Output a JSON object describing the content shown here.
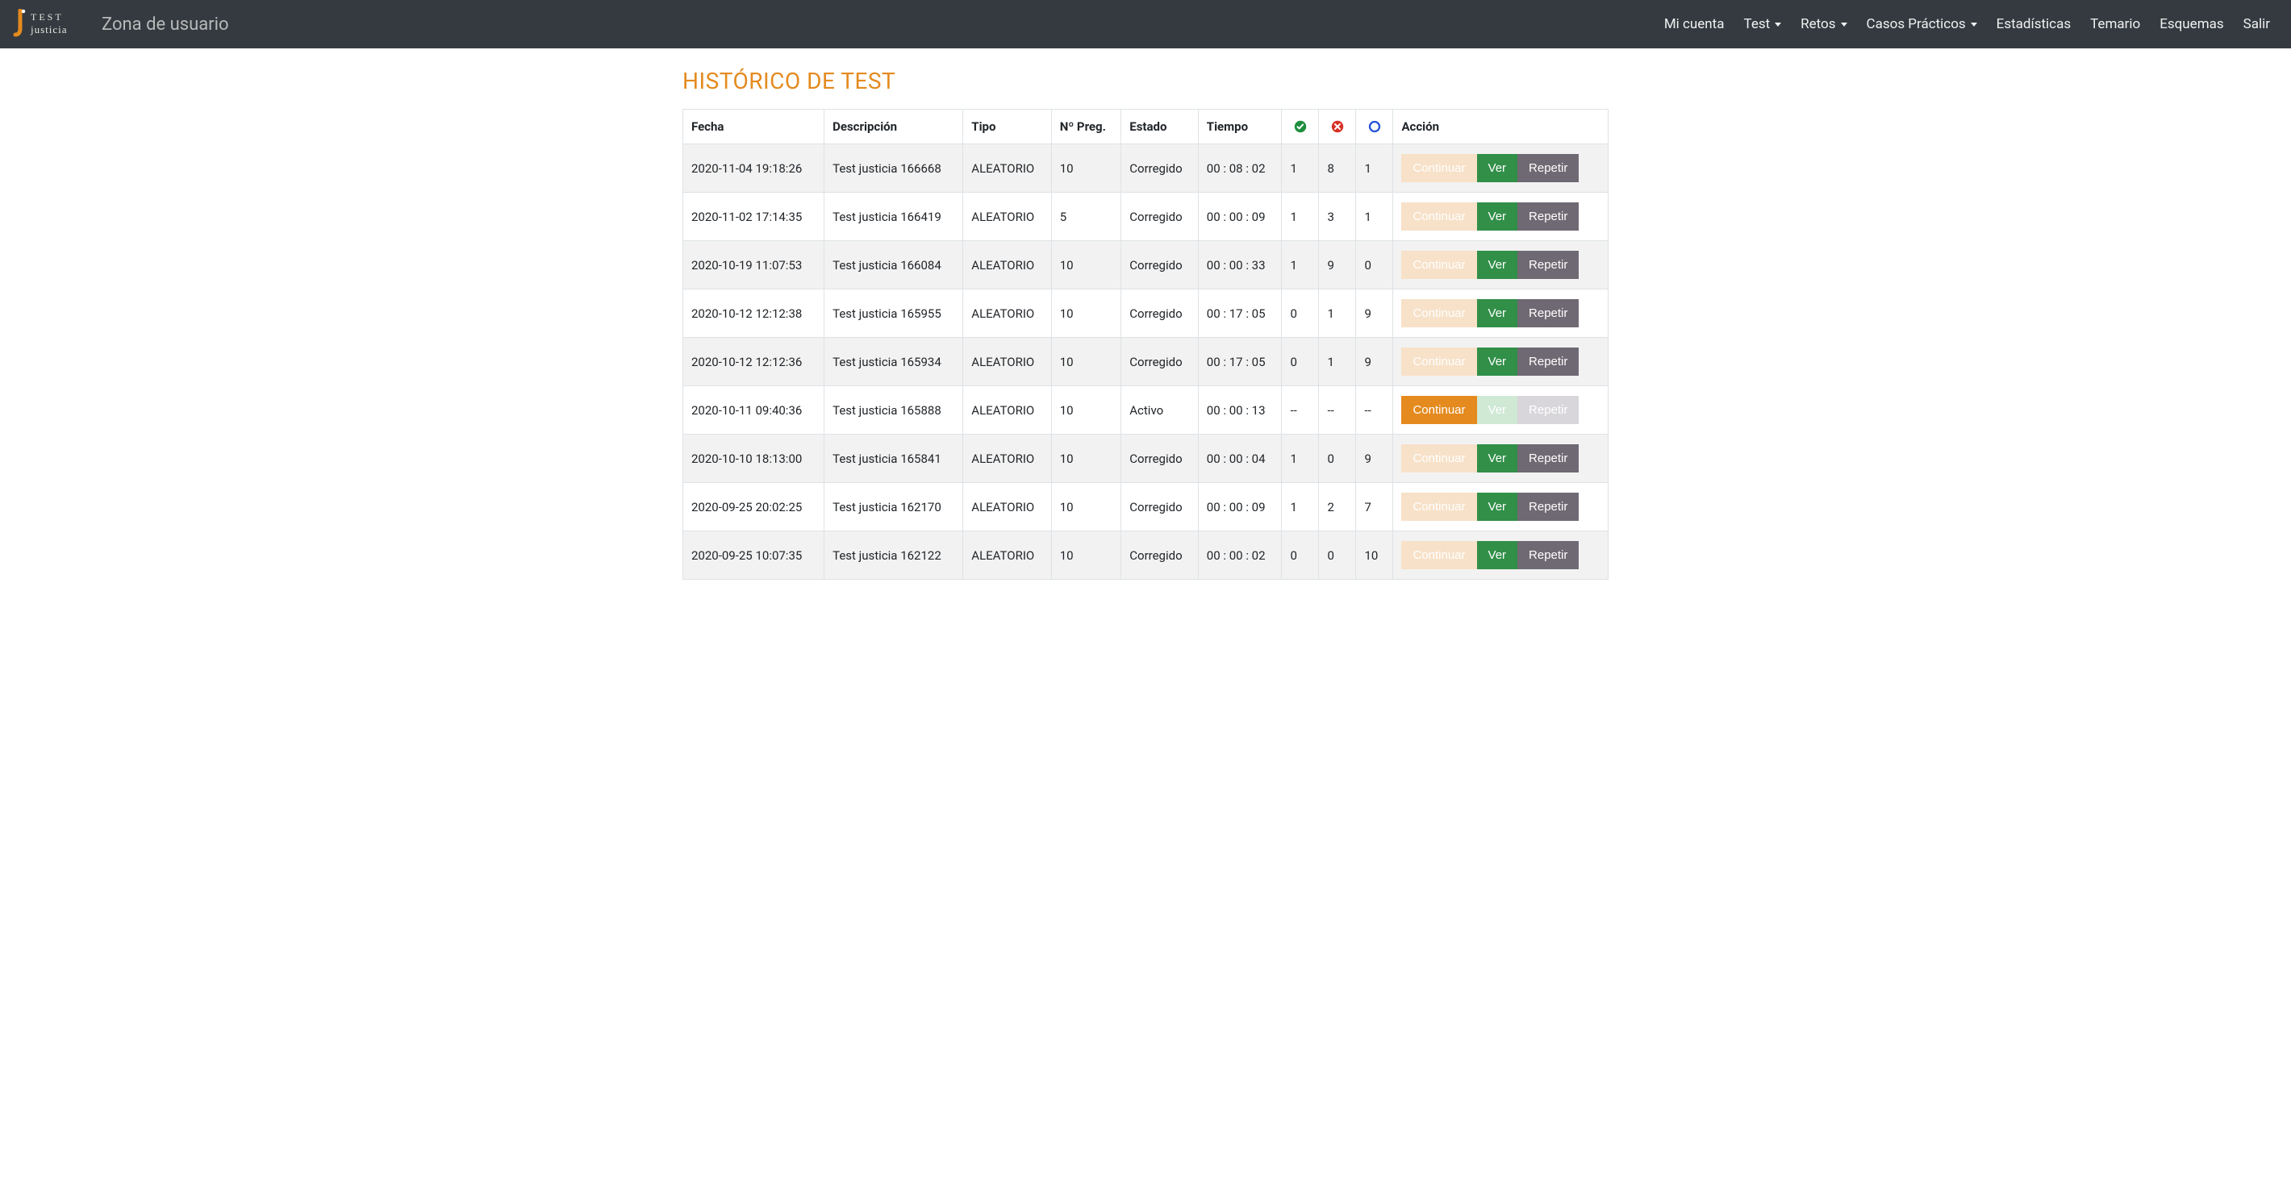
{
  "colors": {
    "navbar_bg": "#343a40",
    "accent_orange": "#e48a1e",
    "row_stripe": "#f2f2f2",
    "border": "#dee2e6",
    "btn_continuar": "#e48a1e",
    "btn_continuar_dim": "#f7e1c8",
    "btn_ver": "#318f48",
    "btn_ver_dim": "#cfe9d5",
    "btn_repetir": "#6f6973",
    "btn_repetir_dim": "#d8d6da",
    "icon_correct": "#1e8e3e",
    "icon_wrong": "#d93025",
    "icon_blank": "#2552d8"
  },
  "brand": {
    "top": "TEST",
    "bottom": "justicia",
    "title": "Zona de usuario"
  },
  "nav": [
    {
      "label": "Mi cuenta",
      "dropdown": false
    },
    {
      "label": "Test",
      "dropdown": true
    },
    {
      "label": "Retos",
      "dropdown": true
    },
    {
      "label": "Casos Prácticos",
      "dropdown": true
    },
    {
      "label": "Estadísticas",
      "dropdown": false
    },
    {
      "label": "Temario",
      "dropdown": false
    },
    {
      "label": "Esquemas",
      "dropdown": false
    },
    {
      "label": "Salir",
      "dropdown": false
    }
  ],
  "page_title": "HISTÓRICO DE TEST",
  "columns": {
    "fecha": "Fecha",
    "desc": "Descripción",
    "tipo": "Tipo",
    "npreg": "Nº Preg.",
    "estado": "Estado",
    "tiempo": "Tiempo",
    "correct_icon": "check-circle",
    "wrong_icon": "times-circle",
    "blank_icon": "open-circle",
    "accion": "Acción"
  },
  "action_labels": {
    "continuar": "Continuar",
    "ver": "Ver",
    "repetir": "Repetir"
  },
  "rows": [
    {
      "fecha": "2020-11-04 19:18:26",
      "desc": "Test justicia 166668",
      "tipo": "ALEATORIO",
      "npreg": "10",
      "estado": "Corregido",
      "tiempo": "00 : 08 : 02",
      "correct": "1",
      "wrong": "8",
      "blank": "1",
      "active": false
    },
    {
      "fecha": "2020-11-02 17:14:35",
      "desc": "Test justicia 166419",
      "tipo": "ALEATORIO",
      "npreg": "5",
      "estado": "Corregido",
      "tiempo": "00 : 00 : 09",
      "correct": "1",
      "wrong": "3",
      "blank": "1",
      "active": false
    },
    {
      "fecha": "2020-10-19 11:07:53",
      "desc": "Test justicia 166084",
      "tipo": "ALEATORIO",
      "npreg": "10",
      "estado": "Corregido",
      "tiempo": "00 : 00 : 33",
      "correct": "1",
      "wrong": "9",
      "blank": "0",
      "active": false
    },
    {
      "fecha": "2020-10-12 12:12:38",
      "desc": "Test justicia 165955",
      "tipo": "ALEATORIO",
      "npreg": "10",
      "estado": "Corregido",
      "tiempo": "00 : 17 : 05",
      "correct": "0",
      "wrong": "1",
      "blank": "9",
      "active": false
    },
    {
      "fecha": "2020-10-12 12:12:36",
      "desc": "Test justicia 165934",
      "tipo": "ALEATORIO",
      "npreg": "10",
      "estado": "Corregido",
      "tiempo": "00 : 17 : 05",
      "correct": "0",
      "wrong": "1",
      "blank": "9",
      "active": false
    },
    {
      "fecha": "2020-10-11 09:40:36",
      "desc": "Test justicia 165888",
      "tipo": "ALEATORIO",
      "npreg": "10",
      "estado": "Activo",
      "tiempo": "00 : 00 : 13",
      "correct": "--",
      "wrong": "--",
      "blank": "--",
      "active": true
    },
    {
      "fecha": "2020-10-10 18:13:00",
      "desc": "Test justicia 165841",
      "tipo": "ALEATORIO",
      "npreg": "10",
      "estado": "Corregido",
      "tiempo": "00 : 00 : 04",
      "correct": "1",
      "wrong": "0",
      "blank": "9",
      "active": false
    },
    {
      "fecha": "2020-09-25 20:02:25",
      "desc": "Test justicia 162170",
      "tipo": "ALEATORIO",
      "npreg": "10",
      "estado": "Corregido",
      "tiempo": "00 : 00 : 09",
      "correct": "1",
      "wrong": "2",
      "blank": "7",
      "active": false
    },
    {
      "fecha": "2020-09-25 10:07:35",
      "desc": "Test justicia 162122",
      "tipo": "ALEATORIO",
      "npreg": "10",
      "estado": "Corregido",
      "tiempo": "00 : 00 : 02",
      "correct": "0",
      "wrong": "0",
      "blank": "10",
      "active": false
    }
  ]
}
